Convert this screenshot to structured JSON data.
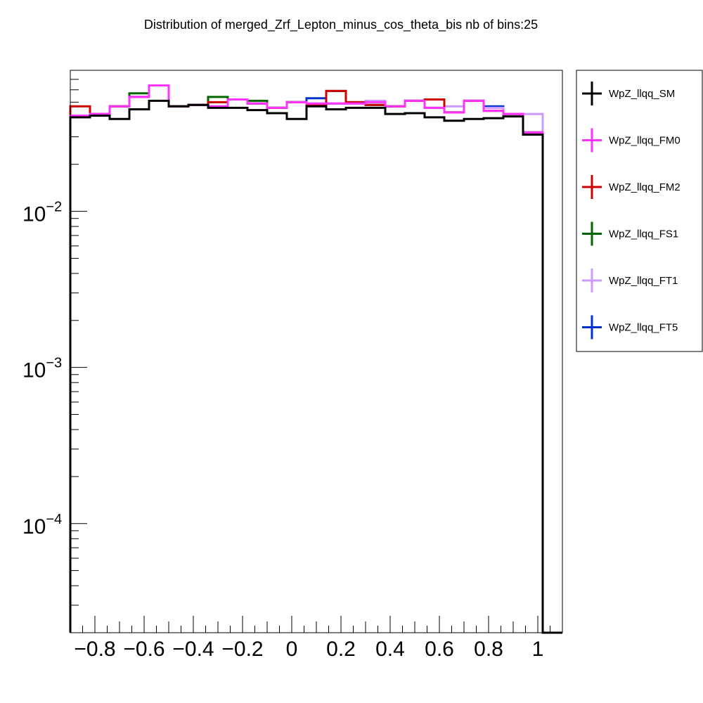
{
  "chart_data": {
    "type": "line",
    "title": "Distribution of merged_Zrf_Lepton_minus_cos_theta_bis nb of bins:25",
    "xlabel": "",
    "ylabel": "",
    "y_scale": "log",
    "xlim": [
      -0.9,
      1.1
    ],
    "ylim": [
      2e-05,
      0.08
    ],
    "grid": false,
    "legend_position": "right",
    "x_ticks": [
      {
        "value": -0.8,
        "label": "−0.8"
      },
      {
        "value": -0.6,
        "label": "−0.6"
      },
      {
        "value": -0.4,
        "label": "−0.4"
      },
      {
        "value": -0.2,
        "label": "−0.2"
      },
      {
        "value": 0,
        "label": "0"
      },
      {
        "value": 0.2,
        "label": "0.2"
      },
      {
        "value": 0.4,
        "label": "0.4"
      },
      {
        "value": 0.6,
        "label": "0.6"
      },
      {
        "value": 0.8,
        "label": "0.8"
      },
      {
        "value": 1,
        "label": "1"
      }
    ],
    "y_ticks": [
      {
        "value": 0.01,
        "base": "10",
        "exp": "−2"
      },
      {
        "value": 0.001,
        "base": "10",
        "exp": "−3"
      },
      {
        "value": 0.0001,
        "base": "10",
        "exp": "−4"
      }
    ],
    "bin_edges": [
      -0.9,
      -0.82,
      -0.74,
      -0.66,
      -0.58,
      -0.5,
      -0.42,
      -0.34,
      -0.26,
      -0.18,
      -0.1,
      -0.02,
      0.06,
      0.14,
      0.22,
      0.3,
      0.38,
      0.46,
      0.54,
      0.62,
      0.7,
      0.78,
      0.86,
      0.94,
      1.02,
      1.1
    ],
    "series": [
      {
        "name": "WpZ_llqq_SM",
        "color": "#000000",
        "values": [
          0.04,
          0.041,
          0.039,
          0.045,
          0.051,
          0.047,
          0.048,
          0.046,
          0.046,
          0.0445,
          0.0425,
          0.039,
          0.047,
          0.045,
          0.046,
          0.046,
          0.042,
          0.0425,
          0.04,
          0.038,
          0.039,
          0.0395,
          0.0405,
          0.031,
          2e-05
        ]
      },
      {
        "name": "WpZ_llqq_FM0",
        "color": "#ff33ff",
        "values": [
          0.041,
          0.042,
          0.047,
          0.054,
          0.064,
          0.047,
          0.048,
          0.047,
          0.052,
          0.049,
          0.046,
          0.05,
          0.049,
          0.049,
          0.049,
          0.05,
          0.047,
          0.051,
          0.046,
          0.043,
          0.051,
          0.044,
          0.042,
          0.032,
          2e-05
        ]
      },
      {
        "name": "WpZ_llqq_FM2",
        "color": "#cc0000",
        "values": [
          0.047,
          0.042,
          0.047,
          0.054,
          0.064,
          0.047,
          0.048,
          0.05,
          0.052,
          0.049,
          0.046,
          0.05,
          0.048,
          0.059,
          0.05,
          0.048,
          0.047,
          0.051,
          0.052,
          0.043,
          0.051,
          0.044,
          0.042,
          0.032,
          2e-05
        ]
      },
      {
        "name": "WpZ_llqq_FS1",
        "color": "#006600",
        "values": [
          0.041,
          0.042,
          0.047,
          0.057,
          0.064,
          0.047,
          0.048,
          0.054,
          0.052,
          0.051,
          0.046,
          0.05,
          0.048,
          0.059,
          0.05,
          0.048,
          0.047,
          0.051,
          0.052,
          0.043,
          0.051,
          0.044,
          0.042,
          0.032,
          2e-05
        ]
      },
      {
        "name": "WpZ_llqq_FT1",
        "color": "#cc99ff",
        "values": [
          0.041,
          0.042,
          0.047,
          0.054,
          0.064,
          0.047,
          0.048,
          0.047,
          0.052,
          0.049,
          0.046,
          0.05,
          0.049,
          0.049,
          0.049,
          0.051,
          0.047,
          0.051,
          0.046,
          0.047,
          0.051,
          0.046,
          0.042,
          0.042,
          2e-05
        ]
      },
      {
        "name": "WpZ_llqq_FT5",
        "color": "#0033cc",
        "values": [
          0.041,
          0.042,
          0.047,
          0.054,
          0.064,
          0.047,
          0.048,
          0.047,
          0.052,
          0.049,
          0.046,
          0.05,
          0.053,
          0.049,
          0.049,
          0.048,
          0.047,
          0.051,
          0.046,
          0.043,
          0.051,
          0.047,
          0.042,
          0.032,
          2e-05
        ]
      }
    ]
  }
}
